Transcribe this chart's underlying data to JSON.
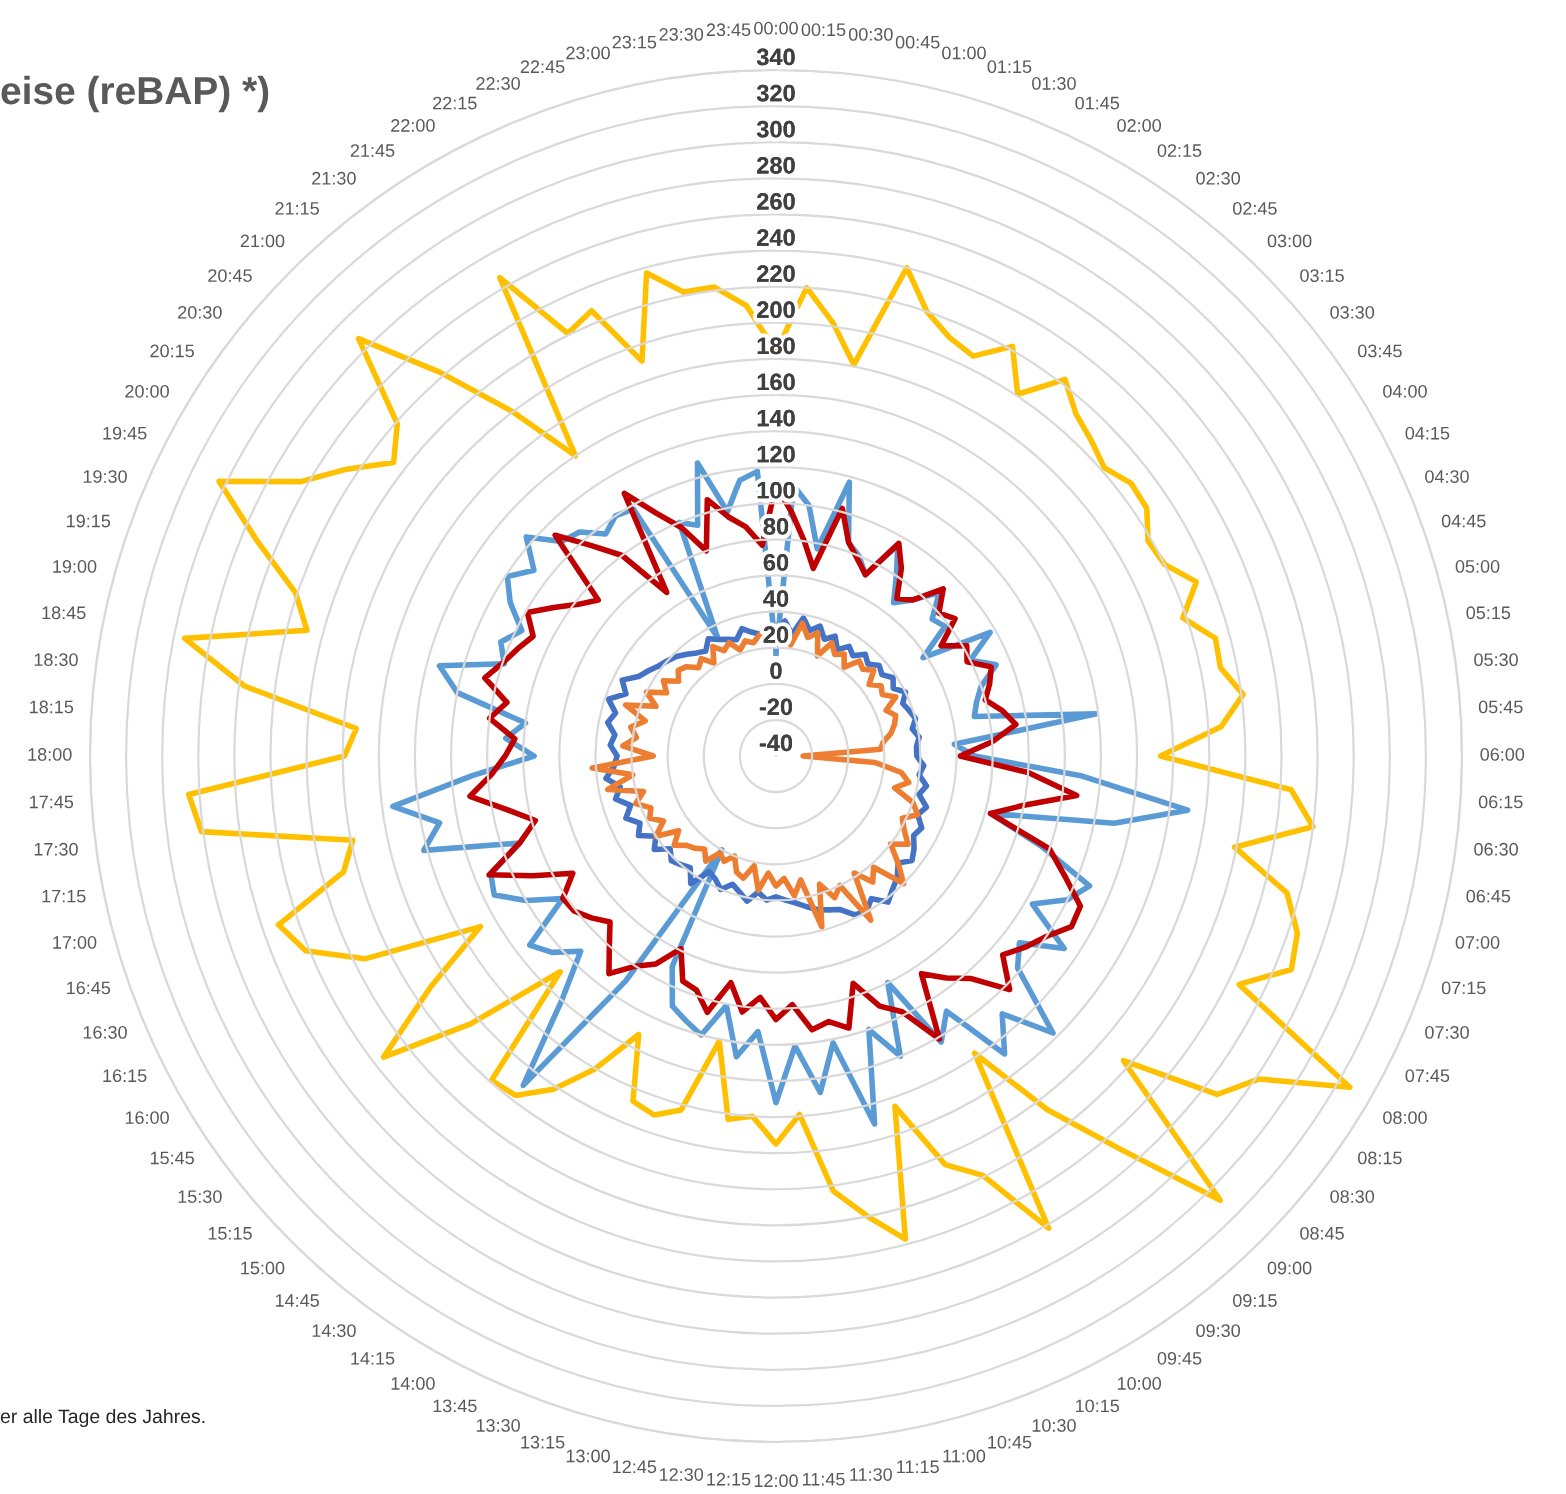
{
  "chart_data": {
    "type": "radar",
    "title": "eise (reBAP) *)",
    "annotations": [
      "er alle Tage des Jahres."
    ],
    "categories": [
      "00:00",
      "00:15",
      "00:30",
      "00:45",
      "01:00",
      "01:15",
      "01:30",
      "01:45",
      "02:00",
      "02:15",
      "02:30",
      "02:45",
      "03:00",
      "03:15",
      "03:30",
      "03:45",
      "04:00",
      "04:15",
      "04:30",
      "04:45",
      "05:00",
      "05:15",
      "05:30",
      "05:45",
      "06:00",
      "06:15",
      "06:30",
      "06:45",
      "07:00",
      "07:15",
      "07:30",
      "07:45",
      "08:00",
      "08:15",
      "08:30",
      "08:45",
      "09:00",
      "09:15",
      "09:30",
      "09:45",
      "10:00",
      "10:15",
      "10:30",
      "10:45",
      "11:00",
      "11:15",
      "11:30",
      "11:45",
      "12:00",
      "12:15",
      "12:30",
      "12:45",
      "13:00",
      "13:15",
      "13:30",
      "13:45",
      "14:00",
      "14:15",
      "14:30",
      "14:45",
      "15:00",
      "15:15",
      "15:30",
      "15:45",
      "16:00",
      "16:15",
      "16:30",
      "16:45",
      "17:00",
      "17:15",
      "17:30",
      "17:45",
      "18:00",
      "18:15",
      "18:30",
      "18:45",
      "19:00",
      "19:15",
      "19:30",
      "19:45",
      "20:00",
      "20:15",
      "20:30",
      "20:45",
      "21:00",
      "21:15",
      "21:30",
      "21:45",
      "22:00",
      "22:15",
      "22:30",
      "22:45",
      "23:00",
      "23:15",
      "23:30",
      "23:45"
    ],
    "series": [
      {
        "color": "#ffc000",
        "values": [
          184,
          220,
          202,
          181,
          240,
          220,
          211,
          207,
          222,
          201,
          223,
          212,
          207,
          202,
          208,
          207,
          198,
          200,
          212,
          198,
          212,
          211,
          221,
          207,
          173,
          246,
          260,
          219,
          253,
          265,
          269,
          246,
          327,
          282,
          268,
          216,
          308,
          250,
          207,
          158,
          262,
          219,
          205,
          165,
          237,
          220,
          203,
          159,
          175,
          160,
          163,
          121,
          163,
          170,
          167,
          132,
          160,
          182,
          197,
          199,
          129,
          185,
          234,
          190,
          149,
          214,
          242,
          251,
          208,
          199,
          281,
          286,
          199,
          193,
          257,
          294,
          229,
          241,
          271,
          304,
          264,
          246,
          227,
          239,
          287,
          243,
          201,
          160,
          266,
          221,
          227,
          191,
          237,
          222,
          222,
          210
        ]
      },
      {
        "color": "#5b9bd5",
        "values": [
          17,
          110,
          100,
          77,
          117,
          85,
          80,
          72,
          95,
          80,
          67,
          75,
          88,
          75,
          78,
          58,
          97,
          80,
          92,
          80,
          75,
          72,
          139,
          59,
          70,
          130,
          190,
          151,
          83,
          115,
          148,
          140,
          124,
          152,
          130,
          138,
          177,
          150,
          168,
          130,
          143,
          100,
          140,
          120,
          171,
          122,
          148,
          121,
          152,
          113,
          128,
          101,
          120,
          115,
          110,
          90,
          20,
          110,
          190,
          140,
          113,
          125,
          132,
          102,
          120,
          134,
          131,
          110,
          162,
          150,
          174,
          129,
          94,
          110,
          100,
          140,
          153,
          119,
          125,
          117,
          130,
          139,
          129,
          144,
          128,
          125,
          115,
          120,
          118,
          33,
          100,
          95,
          128,
          98,
          114,
          118
        ]
      },
      {
        "color": "#c00000",
        "values": [
          110,
          95,
          80,
          66,
          102,
          85,
          78,
          72,
          96,
          85,
          70,
          75,
          91,
          80,
          85,
          70,
          82,
          78,
          89,
          85,
          80,
          88,
          94,
          80,
          62,
          100,
          128,
          100,
          83,
          120,
          133,
          148,
          149,
          140,
          134,
          127,
          143,
          124,
          115,
          105,
          141,
          118,
          110,
          93,
          116,
          110,
          113,
          98,
          106,
          94,
          103,
          88,
          107,
          97,
          95,
          79,
          93,
          100,
          112,
          100,
          90,
          96,
          101,
          102,
          90,
          110,
          132,
          110,
          98,
          112,
          131,
          118,
          110,
          105,
          120,
          112,
          127,
          120,
          115,
          110,
          119,
          108,
          98,
          91,
          133,
          115,
          100,
          69,
          128,
          110,
          97,
          80,
          107,
          95,
          88,
          77
        ]
      },
      {
        "color": "#4472c4",
        "values": [
          30,
          35,
          28,
          38,
          32,
          36,
          30,
          34,
          28,
          33,
          30,
          35,
          32,
          36,
          34,
          38,
          35,
          40,
          36,
          38,
          40,
          37,
          40,
          38,
          38,
          42,
          40,
          45,
          42,
          48,
          45,
          50,
          48,
          52,
          55,
          50,
          55,
          58,
          62,
          55,
          60,
          58,
          52,
          50,
          48,
          45,
          42,
          40,
          38,
          40,
          36,
          42,
          38,
          35,
          40,
          36,
          34,
          45,
          38,
          40,
          42,
          38,
          45,
          40,
          48,
          44,
          50,
          45,
          52,
          48,
          55,
          50,
          48,
          52,
          50,
          55,
          52,
          58,
          50,
          55,
          48,
          45,
          42,
          40,
          38,
          35,
          32,
          30,
          35,
          32,
          30,
          28,
          33,
          30,
          28,
          32
        ]
      },
      {
        "color": "#ed7d31",
        "values": [
          25,
          30,
          22,
          35,
          28,
          32,
          20,
          30,
          25,
          28,
          22,
          30,
          28,
          32,
          25,
          30,
          28,
          34,
          26,
          30,
          28,
          25,
          20,
          18,
          -25,
          15,
          30,
          35,
          28,
          40,
          45,
          38,
          42,
          48,
          40,
          50,
          60,
          42,
          48,
          38,
          65,
          40,
          45,
          35,
          58,
          30,
          38,
          28,
          32,
          25,
          35,
          22,
          30,
          28,
          20,
          25,
          22,
          30,
          25,
          28,
          30,
          35,
          28,
          40,
          32,
          38,
          35,
          42,
          36,
          55,
          40,
          62,
          28,
          45,
          38,
          42,
          35,
          48,
          32,
          40,
          30,
          35,
          28,
          32,
          30,
          25,
          28,
          22,
          30,
          25,
          28,
          22,
          26,
          24,
          28,
          26
        ]
      }
    ],
    "ylim": [
      -40,
      340
    ],
    "yticks": [
      -40,
      -20,
      0,
      20,
      40,
      60,
      80,
      100,
      120,
      140,
      160,
      180,
      200,
      220,
      240,
      260,
      280,
      300,
      320,
      340
    ],
    "grid": "y"
  }
}
